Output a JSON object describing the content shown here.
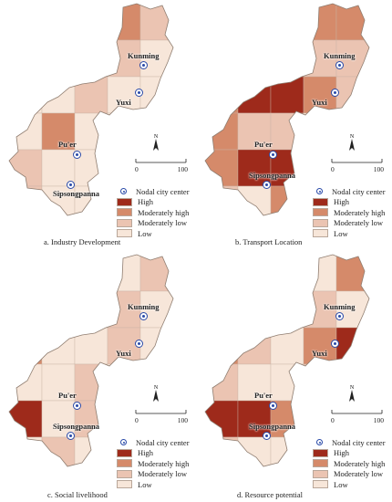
{
  "legend": {
    "nodal_label": "Nodal city center",
    "classes": [
      {
        "label": "High",
        "color": "#9e2a1b"
      },
      {
        "label": "Moderately high",
        "color": "#d58a6a"
      },
      {
        "label": "Moderately low",
        "color": "#ebc4b2"
      },
      {
        "label": "Low",
        "color": "#f7e6d9"
      }
    ]
  },
  "cities": [
    "Kunming",
    "Yuxi",
    "Pu'er",
    "Sipsongpanna"
  ],
  "scale": {
    "zero": "0",
    "max": "100"
  },
  "north_label": "N",
  "panels": [
    {
      "caption": "a. Industry Development",
      "shades": [
        0,
        0,
        1,
        2,
        1,
        0,
        0,
        2,
        1,
        0,
        0,
        0,
        1,
        0,
        0,
        0,
        2,
        0,
        0,
        0,
        1,
        0,
        0,
        0,
        2,
        1,
        0,
        0,
        0,
        0
      ]
    },
    {
      "caption": "b. Transport Location",
      "shades": [
        3,
        3,
        3,
        2,
        2,
        3,
        3,
        2,
        1,
        1,
        2,
        3,
        3,
        2,
        1,
        2,
        1,
        1,
        0,
        1,
        2,
        3,
        3,
        2,
        1,
        1,
        0,
        2,
        3,
        1
      ]
    },
    {
      "caption": "c. Social livelihood",
      "shades": [
        0,
        1,
        0,
        0,
        1,
        0,
        0,
        0,
        1,
        0,
        2,
        0,
        0,
        1,
        0,
        0,
        0,
        1,
        0,
        0,
        3,
        0,
        1,
        0,
        0,
        0,
        1,
        0,
        0,
        0
      ]
    },
    {
      "caption": "d. Resource potential",
      "shades": [
        1,
        3,
        1,
        0,
        2,
        1,
        0,
        1,
        1,
        0,
        2,
        1,
        0,
        2,
        3,
        1,
        0,
        0,
        1,
        0,
        3,
        3,
        2,
        1,
        0,
        1,
        0,
        0,
        1,
        0
      ]
    }
  ]
}
